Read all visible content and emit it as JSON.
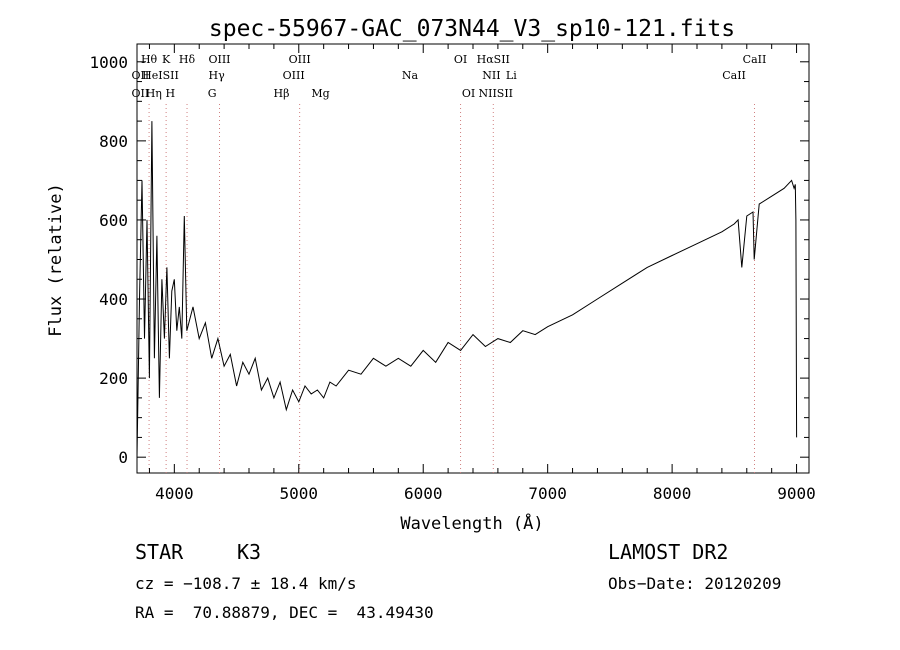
{
  "chart_data": {
    "type": "line",
    "title": "spec-55967-GAC_073N44_V3_sp10-121.fits",
    "xlabel": "Wavelength (Å)",
    "ylabel": "Flux (relative)",
    "xlim": [
      3700,
      9100
    ],
    "ylim": [
      -40,
      1045
    ],
    "x_ticks": [
      4000,
      5000,
      6000,
      7000,
      8000,
      9000
    ],
    "x_tick_labels": [
      "4000",
      "5000",
      "6000",
      "7000",
      "8000",
      "9000"
    ],
    "y_ticks": [
      0,
      200,
      400,
      600,
      800,
      1000
    ],
    "y_tick_labels": [
      "0",
      "200",
      "400",
      "600",
      "800",
      "1000"
    ],
    "grid": false,
    "series": [
      {
        "color": "#000000",
        "x": [
          3700,
          3720,
          3740,
          3760,
          3780,
          3800,
          3820,
          3840,
          3860,
          3880,
          3900,
          3920,
          3940,
          3960,
          3980,
          4000,
          4020,
          4040,
          4060,
          4080,
          4100,
          4150,
          4200,
          4250,
          4300,
          4350,
          4400,
          4450,
          4500,
          4550,
          4600,
          4650,
          4700,
          4750,
          4800,
          4850,
          4900,
          4950,
          5000,
          5050,
          5100,
          5150,
          5200,
          5250,
          5300,
          5400,
          5500,
          5600,
          5700,
          5800,
          5900,
          6000,
          6100,
          6200,
          6300,
          6400,
          6500,
          6600,
          6700,
          6800,
          6900,
          7000,
          7200,
          7400,
          7600,
          7800,
          8000,
          8200,
          8400,
          8500,
          8530,
          8560,
          8600,
          8650,
          8660,
          8700,
          8800,
          8900,
          8960,
          8980,
          8990,
          8995,
          9000
        ],
        "y": [
          0,
          400,
          700,
          300,
          600,
          200,
          850,
          250,
          560,
          150,
          450,
          300,
          480,
          250,
          420,
          450,
          320,
          380,
          300,
          610,
          320,
          380,
          300,
          340,
          250,
          300,
          230,
          260,
          180,
          240,
          210,
          250,
          170,
          200,
          150,
          190,
          120,
          170,
          140,
          180,
          160,
          170,
          150,
          190,
          180,
          220,
          210,
          250,
          230,
          250,
          230,
          270,
          240,
          290,
          270,
          310,
          280,
          300,
          290,
          320,
          310,
          330,
          360,
          400,
          440,
          480,
          510,
          540,
          570,
          590,
          600,
          480,
          610,
          620,
          500,
          640,
          660,
          680,
          700,
          680,
          690,
          600,
          50
        ]
      }
    ],
    "line_marks": [
      {
        "label": "Hθ",
        "wl": 3797,
        "row": 1
      },
      {
        "label": "K",
        "wl": 3934,
        "row": 1
      },
      {
        "label": "Hδ",
        "wl": 4102,
        "row": 1
      },
      {
        "label": "OIII",
        "wl": 4363,
        "row": 1
      },
      {
        "label": "OIII",
        "wl": 5007,
        "row": 1
      },
      {
        "label": "OI",
        "wl": 6300,
        "row": 1
      },
      {
        "label": "HαSII",
        "wl": 6563,
        "row": 1
      },
      {
        "label": "CaII",
        "wl": 8662,
        "row": 1
      },
      {
        "label": "OII",
        "wl": 3727,
        "row": 2
      },
      {
        "label": "HeISII",
        "wl": 3889,
        "row": 2
      },
      {
        "label": "Hγ",
        "wl": 4340,
        "row": 2
      },
      {
        "label": "OIII",
        "wl": 4959,
        "row": 2
      },
      {
        "label": "Na",
        "wl": 5893,
        "row": 2
      },
      {
        "label": "NII",
        "wl": 6548,
        "row": 2
      },
      {
        "label": "Li",
        "wl": 6708,
        "row": 2
      },
      {
        "label": "CaII",
        "wl": 8498,
        "row": 2
      },
      {
        "label": "OII",
        "wl": 3727,
        "row": 3
      },
      {
        "label": "Hη",
        "wl": 3835,
        "row": 3
      },
      {
        "label": "H",
        "wl": 3968,
        "row": 3
      },
      {
        "label": "G",
        "wl": 4304,
        "row": 3
      },
      {
        "label": "Hβ",
        "wl": 4861,
        "row": 3
      },
      {
        "label": "Mg",
        "wl": 5175,
        "row": 3
      },
      {
        "label": "OI",
        "wl": 6364,
        "row": 3
      },
      {
        "label": "NIISII",
        "wl": 6583,
        "row": 3
      }
    ],
    "marker_color": "#d08080"
  },
  "info": {
    "class_label": "STAR",
    "subclass": "K3",
    "cz": "cz = −108.7 ± 18.4 km/s",
    "radec": "RA =  70.88879, DEC =  43.49430",
    "survey": "LAMOST DR2",
    "obs_date": "Obs−Date: 20120209"
  }
}
